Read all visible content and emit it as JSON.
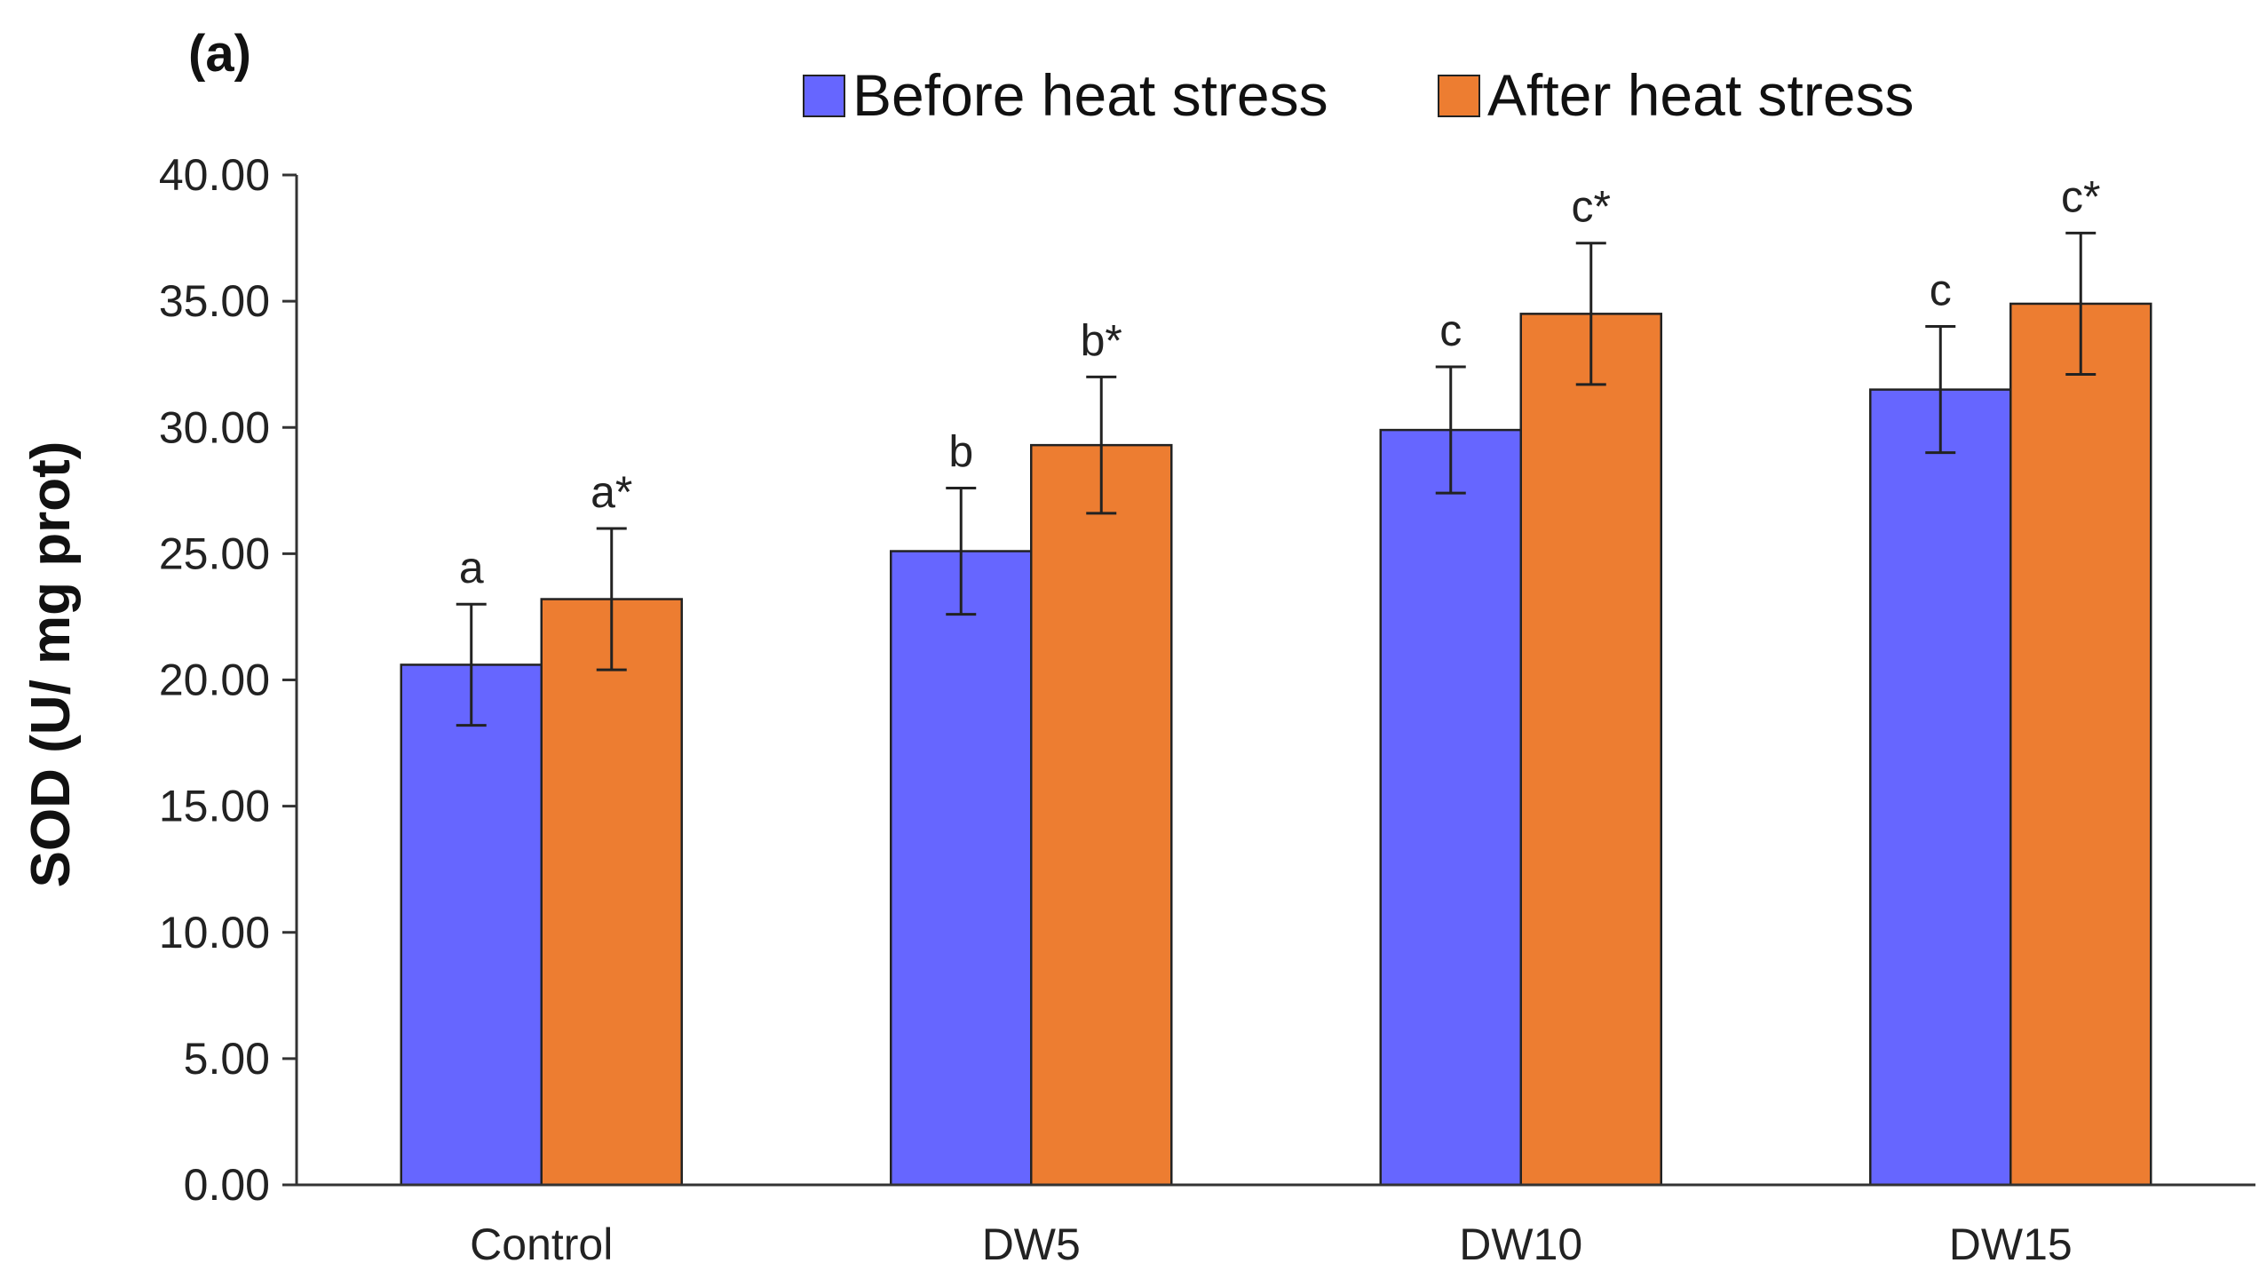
{
  "panel_label": "(a)",
  "colors": {
    "before": "#6666FF",
    "after": "#ED7D31"
  },
  "chart_data": {
    "type": "bar",
    "title": "",
    "xlabel": "",
    "ylabel": "SOD (U/ mg prot)",
    "ylim": [
      0,
      40
    ],
    "yticks": [
      "0.00",
      "5.00",
      "10.00",
      "15.00",
      "20.00",
      "25.00",
      "30.00",
      "35.00",
      "40.00"
    ],
    "categories": [
      "Control",
      "DW5",
      "DW10",
      "DW15"
    ],
    "legend_position": "top",
    "series": [
      {
        "name": "Before heat stress",
        "values": [
          20.6,
          25.1,
          29.9,
          31.5
        ],
        "errors": [
          2.4,
          2.5,
          2.5,
          2.5
        ],
        "labels": [
          "a",
          "b",
          "c",
          "c"
        ]
      },
      {
        "name": "After heat stress",
        "values": [
          23.2,
          29.3,
          34.5,
          34.9
        ],
        "errors": [
          2.8,
          2.7,
          2.8,
          2.8
        ],
        "labels": [
          "a*",
          "b*",
          "c*",
          "c*"
        ]
      }
    ]
  }
}
